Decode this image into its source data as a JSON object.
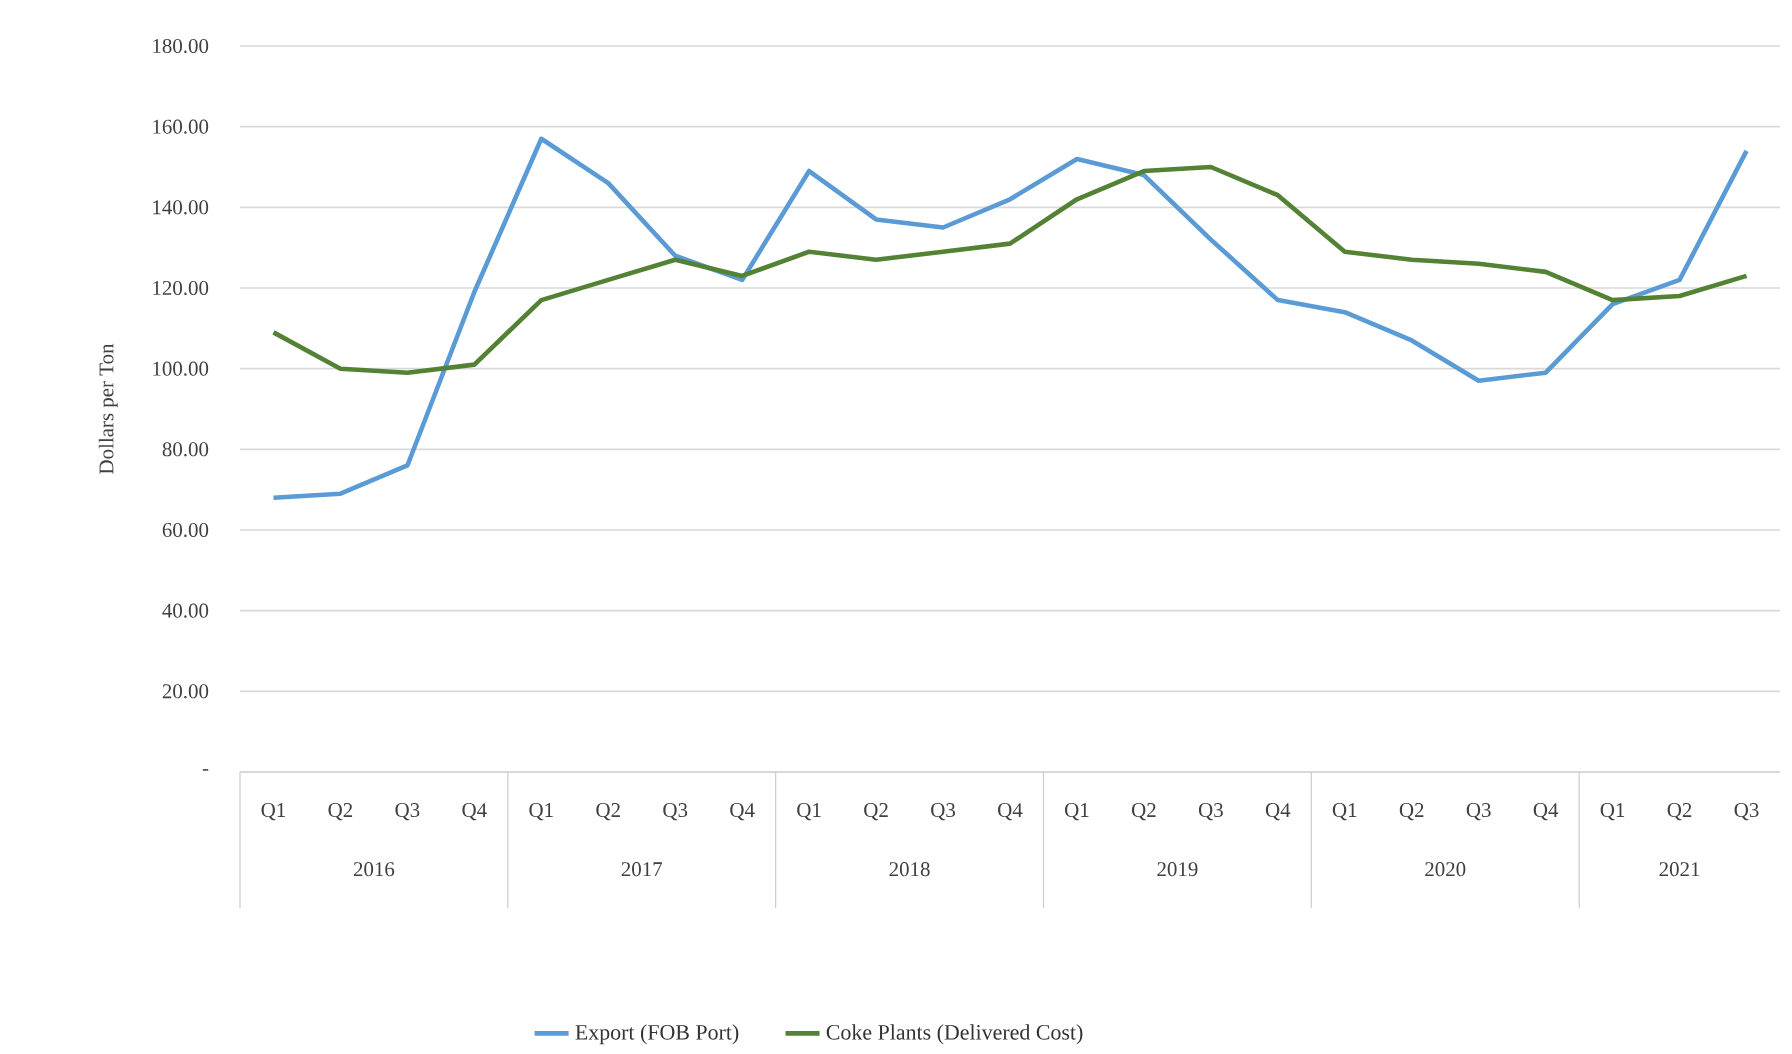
{
  "chart_data": {
    "type": "line",
    "ylabel": "Dollars per Ton",
    "categories": [
      "Q1",
      "Q2",
      "Q3",
      "Q4",
      "Q1",
      "Q2",
      "Q3",
      "Q4",
      "Q1",
      "Q2",
      "Q3",
      "Q4",
      "Q1",
      "Q2",
      "Q3",
      "Q4",
      "Q1",
      "Q2",
      "Q3",
      "Q4",
      "Q1",
      "Q2",
      "Q3"
    ],
    "annotations": [
      "2016",
      "2017",
      "2018",
      "2019",
      "2020",
      "2021"
    ],
    "series": [
      {
        "name": "Export (FOB Port)",
        "color": "#5b9bd5",
        "values": [
          68,
          69,
          76,
          119,
          157,
          146,
          128,
          122,
          149,
          137,
          135,
          142,
          152,
          148,
          132,
          117,
          114,
          107,
          97,
          99,
          116,
          122,
          154
        ]
      },
      {
        "name": "Coke Plants (Delivered Cost)",
        "color": "#548235",
        "values": [
          109,
          100,
          99,
          101,
          117,
          122,
          127,
          123,
          129,
          127,
          129,
          131,
          142,
          149,
          150,
          143,
          129,
          127,
          126,
          124,
          117,
          118,
          123
        ]
      }
    ],
    "ylim": [
      0,
      180
    ],
    "yticks": [
      {
        "value": 0,
        "label": "-"
      },
      {
        "value": 20,
        "label": "20.00"
      },
      {
        "value": 40,
        "label": "40.00"
      },
      {
        "value": 60,
        "label": "60.00"
      },
      {
        "value": 80,
        "label": "80.00"
      },
      {
        "value": 100,
        "label": "100.00"
      },
      {
        "value": 120,
        "label": "120.00"
      },
      {
        "value": 140,
        "label": "140.00"
      },
      {
        "value": 160,
        "label": "160.00"
      },
      {
        "value": 180,
        "label": "180.00"
      }
    ],
    "grid": "y",
    "legend": "bottom",
    "marker": "none",
    "line_style": "solid"
  }
}
